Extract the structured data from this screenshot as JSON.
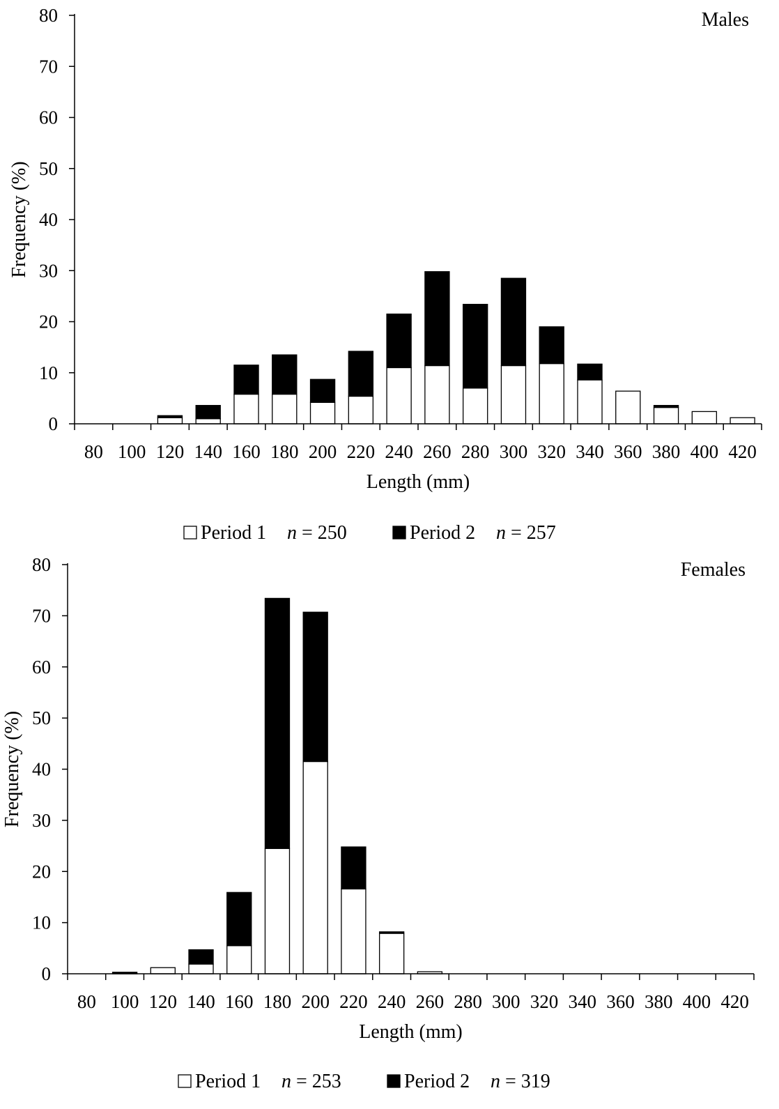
{
  "chart_data": [
    {
      "type": "bar",
      "stacked": true,
      "panel_label": "Males",
      "xlabel": "Length (mm)",
      "ylabel": "Frequency (%)",
      "ylim": [
        0,
        80
      ],
      "yticks": [
        "0",
        "10",
        "20",
        "30",
        "40",
        "50",
        "60",
        "70",
        "80"
      ],
      "categories": [
        "80",
        "100",
        "120",
        "140",
        "160",
        "180",
        "200",
        "220",
        "240",
        "260",
        "280",
        "300",
        "320",
        "340",
        "360",
        "380",
        "400",
        "420"
      ],
      "series": [
        {
          "name": "Period 1",
          "n_text": "n = 250",
          "color": "#ffffff",
          "values": [
            0,
            0,
            1.2,
            1.0,
            5.8,
            5.8,
            4.2,
            5.4,
            11.0,
            11.4,
            7.0,
            11.4,
            11.8,
            8.6,
            6.4,
            3.2,
            2.4,
            1.2
          ]
        },
        {
          "name": "Period 2",
          "n_text": "n = 257",
          "color": "#000000",
          "values": [
            0,
            0,
            0.4,
            2.6,
            5.7,
            7.7,
            4.5,
            8.8,
            10.5,
            18.4,
            16.4,
            17.1,
            7.2,
            3.1,
            0,
            0.4,
            0,
            0
          ]
        }
      ],
      "legend_position": "bottom"
    },
    {
      "type": "bar",
      "stacked": true,
      "panel_label": "Females",
      "xlabel": "Length (mm)",
      "ylabel": "Frequency (%)",
      "ylim": [
        0,
        80
      ],
      "yticks": [
        "0",
        "10",
        "20",
        "30",
        "40",
        "50",
        "60",
        "70",
        "80"
      ],
      "categories": [
        "80",
        "100",
        "120",
        "140",
        "160",
        "180",
        "200",
        "220",
        "240",
        "260",
        "280",
        "300",
        "320",
        "340",
        "360",
        "380",
        "400",
        "420"
      ],
      "series": [
        {
          "name": "Period 1",
          "n_text": "n = 253",
          "color": "#ffffff",
          "values": [
            0,
            0,
            1.2,
            1.9,
            5.5,
            24.5,
            41.5,
            16.6,
            7.9,
            0.4,
            0,
            0,
            0,
            0,
            0,
            0,
            0,
            0
          ]
        },
        {
          "name": "Period 2",
          "n_text": "n = 319",
          "color": "#000000",
          "values": [
            0,
            0.3,
            0,
            2.8,
            10.4,
            48.9,
            29.2,
            8.2,
            0.3,
            0,
            0,
            0,
            0,
            0,
            0,
            0,
            0,
            0
          ]
        }
      ],
      "legend_position": "bottom"
    }
  ]
}
